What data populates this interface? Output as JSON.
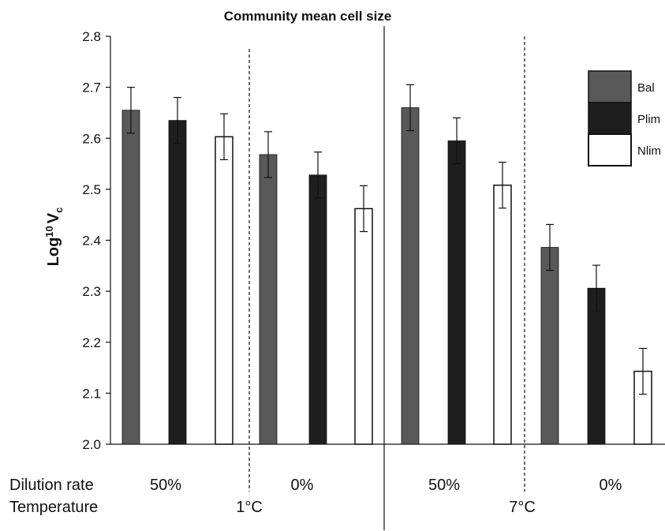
{
  "chart_data": {
    "type": "bar",
    "title": "Community mean cell size",
    "ylabel": "Log",
    "ylabel_sup": "10",
    "ylabel_main": "V",
    "ylabel_sub": "c",
    "ylim": [
      2.0,
      2.8
    ],
    "yticks": [
      "2.0",
      "2.1",
      "2.2",
      "2.3",
      "2.4",
      "2.5",
      "2.6",
      "2.7",
      "2.8"
    ],
    "grid": false,
    "legend_position": "top-right",
    "series": [
      {
        "name": "Bal",
        "color": "#595959"
      },
      {
        "name": "Plim",
        "color": "#1e1e1e"
      },
      {
        "name": "Nlim",
        "color": "#ffffff"
      }
    ],
    "groups": [
      {
        "dilution": "50%",
        "temperature": "1°C",
        "values": [
          2.655,
          2.635,
          2.603
        ],
        "errors": [
          0.045,
          0.045,
          0.045
        ]
      },
      {
        "dilution": "0%",
        "temperature": "1°C",
        "values": [
          2.568,
          2.528,
          2.462
        ],
        "errors": [
          0.045,
          0.045,
          0.045
        ]
      },
      {
        "dilution": "50%",
        "temperature": "7°C",
        "values": [
          2.66,
          2.595,
          2.508
        ],
        "errors": [
          0.045,
          0.045,
          0.045
        ]
      },
      {
        "dilution": "0%",
        "temperature": "7°C",
        "values": [
          2.386,
          2.306,
          2.143
        ],
        "errors": [
          0.045,
          0.045,
          0.045
        ]
      }
    ],
    "row_labels": {
      "dilution": "Dilution rate",
      "temperature": "Temperature"
    },
    "temperature_labels": [
      "1°C",
      "7°C"
    ]
  }
}
